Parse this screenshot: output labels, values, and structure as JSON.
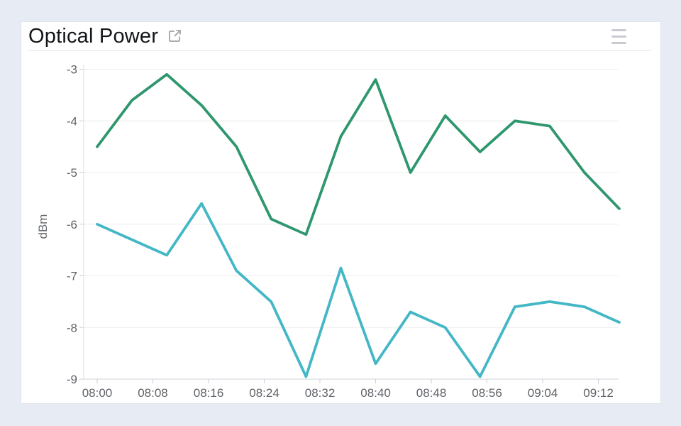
{
  "page": {
    "background": "#e7ebf3"
  },
  "card": {
    "background": "#ffffff"
  },
  "header": {
    "title": "Optical Power",
    "open_icon": "open-in-new",
    "menu_icon": "hamburger-menu"
  },
  "chart_data": {
    "type": "line",
    "title": "Optical Power",
    "xlabel": "",
    "ylabel": "dBm",
    "ylim": [
      -9,
      -3
    ],
    "y_ticks": [
      -3,
      -4,
      -5,
      -6,
      -7,
      -8,
      -9
    ],
    "x_tick_labels": [
      "08:00",
      "08:08",
      "08:16",
      "08:24",
      "08:32",
      "08:40",
      "08:48",
      "08:56",
      "09:04",
      "09:12"
    ],
    "x": [
      "08:00",
      "08:05",
      "08:10",
      "08:15",
      "08:20",
      "08:25",
      "08:30",
      "08:35",
      "08:40",
      "08:45",
      "08:50",
      "08:55",
      "09:00",
      "09:05",
      "09:10",
      "09:15"
    ],
    "series": [
      {
        "name": "green",
        "color": "#2f976e",
        "values": [
          -4.5,
          -3.6,
          -3.1,
          -3.7,
          -4.5,
          -5.9,
          -6.2,
          -4.3,
          -3.2,
          -5.0,
          -3.9,
          -4.6,
          -4.0,
          -4.1,
          -5.0,
          -5.7
        ]
      },
      {
        "name": "cyan",
        "color": "#44b7c6",
        "values": [
          -6.0,
          -6.3,
          -6.6,
          -5.6,
          -6.9,
          -7.5,
          -8.95,
          -6.85,
          -8.7,
          -7.7,
          -8.0,
          -8.95,
          -7.6,
          -7.5,
          -7.6,
          -7.9
        ]
      }
    ],
    "grid": true,
    "legend": "none",
    "grid_color": "#ededed",
    "axis_color": "#cfd3d8",
    "tick_color": "#c9ced4",
    "label_color": "#5f6368"
  }
}
